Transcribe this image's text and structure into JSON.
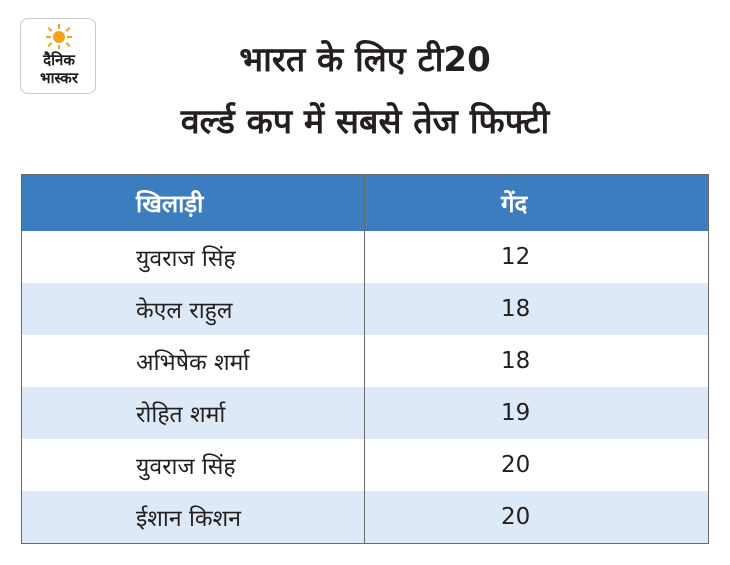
{
  "brand": {
    "logo_text_line1": "दैनिक",
    "logo_text_line2": "भास्कर",
    "sun_color": "#f5a31a",
    "text_color": "#1a1a1a"
  },
  "title": {
    "line1": "भारत के लिए टी20",
    "line2": "वर्ल्ड कप में सबसे तेज फिफ्टी"
  },
  "table": {
    "header_color": "#3b7dbf",
    "alt_row_color": "#dde9f6",
    "headers": [
      "खिलाड़ी",
      "गेंद"
    ],
    "rows": [
      {
        "player": "युवराज सिंह",
        "balls": "12"
      },
      {
        "player": "केएल राहुल",
        "balls": "18"
      },
      {
        "player": "अभिषेक शर्मा",
        "balls": "18"
      },
      {
        "player": "रोहित शर्मा",
        "balls": "19"
      },
      {
        "player": "युवराज सिंह",
        "balls": "20"
      },
      {
        "player": "ईशान किशन",
        "balls": "20"
      }
    ]
  }
}
